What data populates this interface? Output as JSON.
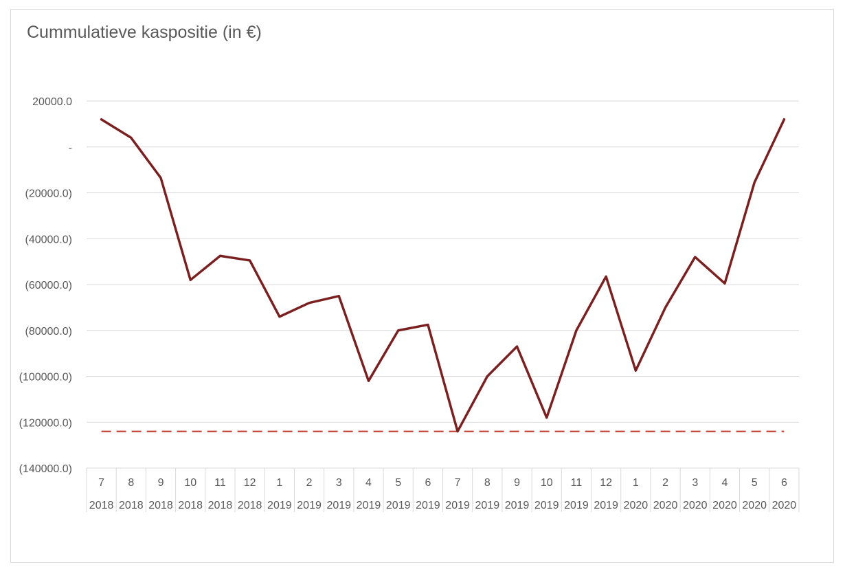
{
  "chart_data": {
    "type": "line",
    "title": "Cummulatieve kaspositie (in €)",
    "xlabel": "",
    "ylabel": "",
    "ylim": [
      -140000,
      20000
    ],
    "y_ticks": [
      {
        "value": 20000,
        "label": "20000.0"
      },
      {
        "value": 0,
        "label": "-"
      },
      {
        "value": -20000,
        "label": "(20000.0)"
      },
      {
        "value": -40000,
        "label": "(40000.0)"
      },
      {
        "value": -60000,
        "label": "(60000.0)"
      },
      {
        "value": -80000,
        "label": "(80000.0)"
      },
      {
        "value": -100000,
        "label": "(100000.0)"
      },
      {
        "value": -120000,
        "label": "(120000.0)"
      },
      {
        "value": -140000,
        "label": "(140000.0)"
      }
    ],
    "categories": [
      {
        "month": "7",
        "year": "2018"
      },
      {
        "month": "8",
        "year": "2018"
      },
      {
        "month": "9",
        "year": "2018"
      },
      {
        "month": "10",
        "year": "2018"
      },
      {
        "month": "11",
        "year": "2018"
      },
      {
        "month": "12",
        "year": "2018"
      },
      {
        "month": "1",
        "year": "2019"
      },
      {
        "month": "2",
        "year": "2019"
      },
      {
        "month": "3",
        "year": "2019"
      },
      {
        "month": "4",
        "year": "2019"
      },
      {
        "month": "5",
        "year": "2019"
      },
      {
        "month": "6",
        "year": "2019"
      },
      {
        "month": "7",
        "year": "2019"
      },
      {
        "month": "8",
        "year": "2019"
      },
      {
        "month": "9",
        "year": "2019"
      },
      {
        "month": "10",
        "year": "2019"
      },
      {
        "month": "11",
        "year": "2019"
      },
      {
        "month": "12",
        "year": "2019"
      },
      {
        "month": "1",
        "year": "2020"
      },
      {
        "month": "2",
        "year": "2020"
      },
      {
        "month": "3",
        "year": "2020"
      },
      {
        "month": "4",
        "year": "2020"
      },
      {
        "month": "5",
        "year": "2020"
      },
      {
        "month": "6",
        "year": "2020"
      }
    ],
    "series": [
      {
        "color": "#7b2020",
        "values": [
          12000,
          4000,
          -13500,
          -58000,
          -47500,
          -49500,
          -74000,
          -68000,
          -65000,
          -102000,
          -80000,
          -77500,
          -124000,
          -100000,
          -87000,
          -118000,
          -80000,
          -56500,
          -97500,
          -70000,
          -48000,
          -59500,
          -15500,
          12000
        ]
      }
    ],
    "reference_line": {
      "value": -124000,
      "color": "#c0392b",
      "style": "dashed"
    },
    "grid": true,
    "legend": "none"
  }
}
